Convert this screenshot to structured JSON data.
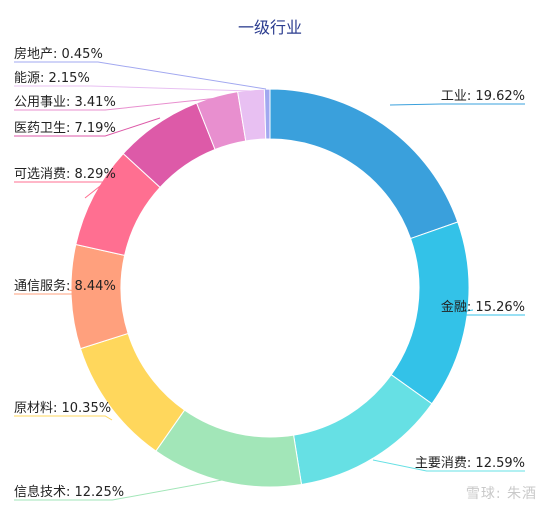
{
  "chart_data": {
    "type": "pie",
    "title": "一级行业",
    "categories": [
      "工业",
      "金融",
      "主要消费",
      "信息技术",
      "原材料",
      "通信服务",
      "可选消费",
      "医药卫生",
      "公用事业",
      "能源",
      "房地产"
    ],
    "values": [
      19.62,
      15.26,
      12.59,
      12.25,
      10.35,
      8.44,
      8.29,
      7.19,
      3.41,
      2.15,
      0.45
    ],
    "labels": [
      "工业: 19.62%",
      "金融: 15.26%",
      "主要消费: 12.59%",
      "信息技术: 12.25%",
      "原材料: 10.35%",
      "通信服务: 8.44%",
      "可选消费: 8.29%",
      "医药卫生: 7.19%",
      "公用事业: 3.41%",
      "能源: 2.15%",
      "房地产: 0.45%"
    ],
    "colors": [
      "#3aa0dc",
      "#33c2e8",
      "#66e0e4",
      "#a2e6b8",
      "#ffd75c",
      "#ffa07d",
      "#ff6f91",
      "#dd5aa8",
      "#e88fcf",
      "#e8c0f2",
      "#a2a8f0"
    ],
    "donut": true
  },
  "watermark": "雪球: 朱酒"
}
